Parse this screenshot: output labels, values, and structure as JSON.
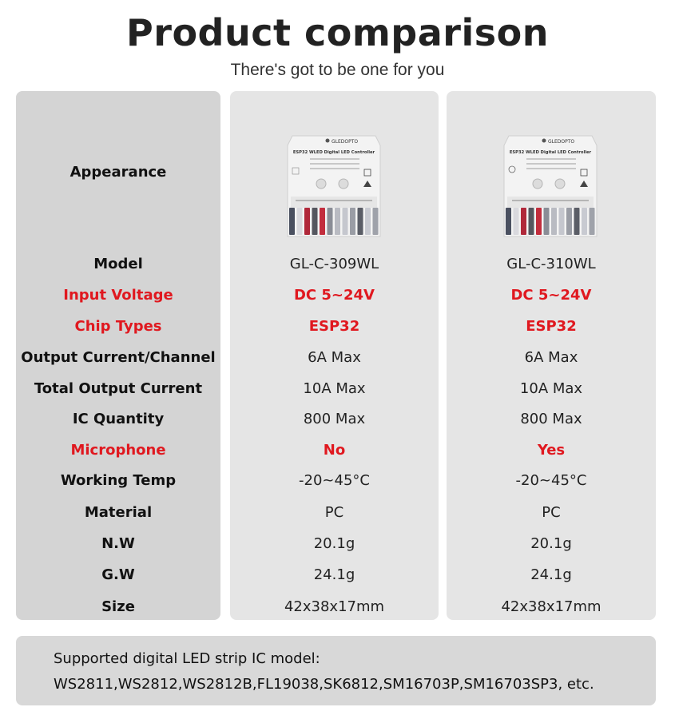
{
  "header": {
    "title": "Product comparison",
    "subtitle": "There's got to be one for you"
  },
  "labels": [
    {
      "text": "Appearance",
      "highlight": false
    },
    {
      "text": "Model",
      "highlight": false
    },
    {
      "text": "Input Voltage",
      "highlight": true
    },
    {
      "text": "Chip Types",
      "highlight": true
    },
    {
      "text": "Output Current/Channel",
      "highlight": false
    },
    {
      "text": "Total Output Current",
      "highlight": false
    },
    {
      "text": "IC Quantity",
      "highlight": false
    },
    {
      "text": "Microphone",
      "highlight": true
    },
    {
      "text": "Working Temp",
      "highlight": false
    },
    {
      "text": "Material",
      "highlight": false
    },
    {
      "text": "N.W",
      "highlight": false
    },
    {
      "text": "G.W",
      "highlight": false
    },
    {
      "text": "Size",
      "highlight": false
    }
  ],
  "products": [
    {
      "image": "controller-device-image",
      "values": [
        "GL-C-309WL",
        "DC 5~24V",
        "ESP32",
        "6A Max",
        "10A Max",
        "800 Max",
        "No",
        "-20~45°C",
        "PC",
        "20.1g",
        "24.1g",
        "42x38x17mm"
      ]
    },
    {
      "image": "controller-device-image",
      "values": [
        "GL-C-310WL",
        "DC 5~24V",
        "ESP32",
        "6A Max",
        "10A Max",
        "800 Max",
        "Yes",
        "-20~45°C",
        "PC",
        "20.1g",
        "24.1g",
        "42x38x17mm"
      ]
    }
  ],
  "device_label": {
    "brand": "GLEDOPTO",
    "name": "ESP32 WLED Digital LED Controller"
  },
  "footer": {
    "line1": "Supported digital LED strip IC model:",
    "line2": "WS2811,WS2812,WS2812B,FL19038,SK6812,SM16703P,SM16703SP3, etc."
  },
  "colors": {
    "highlight": "#e0181f",
    "label_panel": "#d4d4d4",
    "product_panel": "#e5e5e5"
  }
}
